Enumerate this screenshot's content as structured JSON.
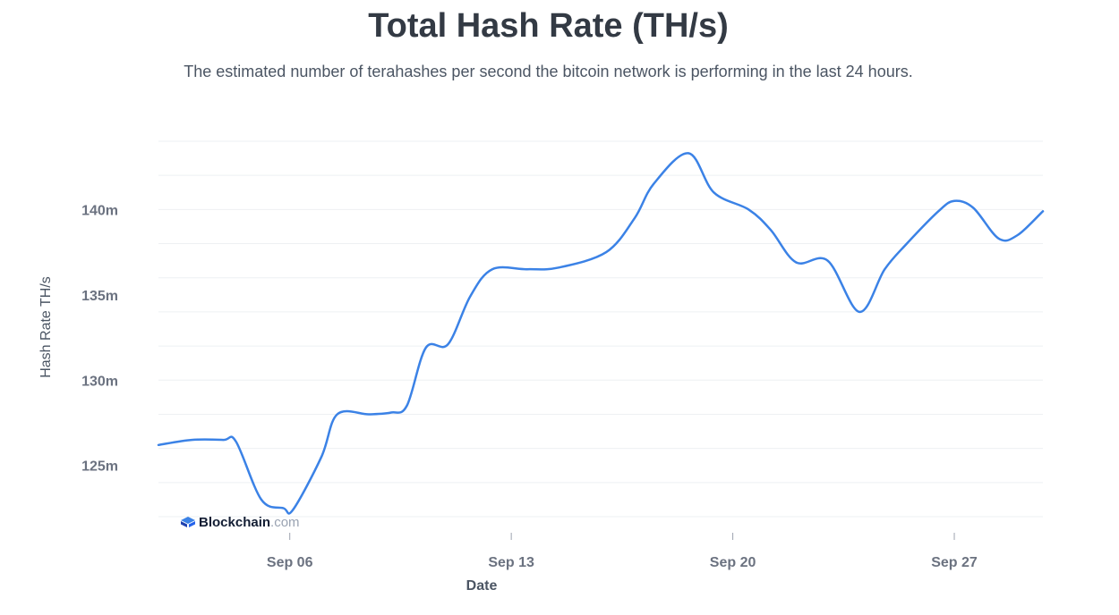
{
  "header": {
    "title": "Total Hash Rate (TH/s)",
    "subtitle": "The estimated number of terahashes per second the bitcoin network is performing in the last 24 hours."
  },
  "watermark": {
    "name": "Blockchain",
    "tld": ".com",
    "icon": "blockchain-logo-icon"
  },
  "colors": {
    "line": "#3b82e6",
    "grid": "#eef0f3",
    "tick_text": "#6b7280",
    "axis_text": "#4b5563"
  },
  "chart_data": {
    "type": "line",
    "title": "Total Hash Rate (TH/s)",
    "xlabel": "Date",
    "ylabel": "Hash Rate TH/s",
    "grid": true,
    "ylim": [
      122,
      144
    ],
    "y_ticks": [
      {
        "value": 125,
        "label": "125m"
      },
      {
        "value": 130,
        "label": "130m"
      },
      {
        "value": 135,
        "label": "135m"
      },
      {
        "value": 140,
        "label": "140m"
      }
    ],
    "x_ticks": [
      {
        "value": 6,
        "label": "Sep 06"
      },
      {
        "value": 13,
        "label": "Sep 13"
      },
      {
        "value": 20,
        "label": "Sep 20"
      },
      {
        "value": 27,
        "label": "Sep 27"
      }
    ],
    "xlim": [
      1.85,
      29.8
    ],
    "series": [
      {
        "color": "#3b82e6",
        "x": [
          1.85,
          2.9,
          3.9,
          4.3,
          5.1,
          5.8,
          6.1,
          7.0,
          7.5,
          8.5,
          9.2,
          9.7,
          10.3,
          11.0,
          11.7,
          12.4,
          13.5,
          14.5,
          16.0,
          16.9,
          17.5,
          18.6,
          19.4,
          20.5,
          21.2,
          22.0,
          23.0,
          24.0,
          24.8,
          25.5,
          26.5,
          27.0,
          27.6,
          28.4,
          29.0,
          29.8
        ],
        "y": [
          126.2,
          126.5,
          126.5,
          126.4,
          123.0,
          122.5,
          122.4,
          125.5,
          128.0,
          128.0,
          128.1,
          128.5,
          131.9,
          132.1,
          134.9,
          136.5,
          136.5,
          136.6,
          137.5,
          139.5,
          141.5,
          143.3,
          141.0,
          140.0,
          138.8,
          136.9,
          137.0,
          134.0,
          136.5,
          138.0,
          139.9,
          140.5,
          140.1,
          138.3,
          138.5,
          139.9
        ]
      }
    ]
  }
}
